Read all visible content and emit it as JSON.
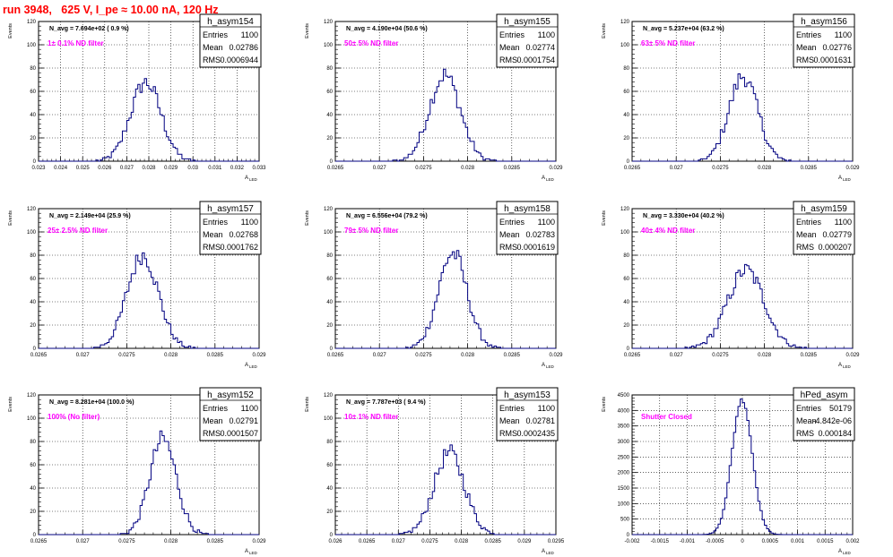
{
  "title": "run 3948,   625 V, I_pe ≈ 10.00 nA, 120 Hz",
  "common": {
    "ylabel": "Events",
    "xlabel": "A",
    "xlabel_sub": "LED",
    "line_color": "#000080",
    "annotation_color": "#ff00ff",
    "entries_label": "Entries",
    "mean_label": "Mean",
    "rms_label": "RMS"
  },
  "chart_data": [
    {
      "type": "bar",
      "name": "h_asym154",
      "navg": "N_avg = 7.694e+02 ( 0.9 %)",
      "filter": "1± 0.1% ND filter",
      "stats": {
        "entries": "1100",
        "mean": "0.02786",
        "rms": "0.0006944"
      },
      "xlim": [
        0.023,
        0.033
      ],
      "xticks": [
        "0.023",
        "0.024",
        "0.025",
        "0.026",
        "0.027",
        "0.028",
        "0.029",
        "0.03",
        "0.031",
        "0.032",
        "0.033"
      ],
      "ylim": [
        0,
        120
      ],
      "yticks": [
        "0",
        "20",
        "40",
        "60",
        "80",
        "100",
        "120"
      ],
      "mean": 0.02786,
      "sigma": 0.00069,
      "peak": 68,
      "entries": 1100
    },
    {
      "type": "bar",
      "name": "h_asym155",
      "navg": "N_avg = 4.190e+04 (50.6 %)",
      "filter": "50± 5% ND filter",
      "stats": {
        "entries": "1100",
        "mean": "0.02774",
        "rms": "0.0001754"
      },
      "xlim": [
        0.0265,
        0.029
      ],
      "xticks": [
        "0.0265",
        "0.027",
        "0.0275",
        "0.028",
        "0.0285",
        "0.029"
      ],
      "ylim": [
        0,
        120
      ],
      "yticks": [
        "0",
        "20",
        "40",
        "60",
        "80",
        "100",
        "120"
      ],
      "mean": 0.02774,
      "sigma": 0.000175,
      "peak": 74,
      "entries": 1100
    },
    {
      "type": "bar",
      "name": "h_asym156",
      "navg": "N_avg = 5.237e+04 (63.2 %)",
      "filter": "63± 5% ND filter",
      "stats": {
        "entries": "1100",
        "mean": "0.02776",
        "rms": "0.0001631"
      },
      "xlim": [
        0.0265,
        0.029
      ],
      "xticks": [
        "0.0265",
        "0.027",
        "0.0275",
        "0.028",
        "0.0285",
        "0.029"
      ],
      "ylim": [
        0,
        120
      ],
      "yticks": [
        "0",
        "20",
        "40",
        "60",
        "80",
        "100",
        "120"
      ],
      "mean": 0.02776,
      "sigma": 0.000163,
      "peak": 73,
      "entries": 1100
    },
    {
      "type": "bar",
      "name": "h_asym157",
      "navg": "N_avg = 2.149e+04 (25.9 %)",
      "filter": "25± 2.5% ND filter",
      "stats": {
        "entries": "1100",
        "mean": "0.02768",
        "rms": "0.0001762"
      },
      "xlim": [
        0.0265,
        0.029
      ],
      "xticks": [
        "0.0265",
        "0.027",
        "0.0275",
        "0.028",
        "0.0285",
        "0.029"
      ],
      "ylim": [
        0,
        120
      ],
      "yticks": [
        "0",
        "20",
        "40",
        "60",
        "80",
        "100",
        "120"
      ],
      "mean": 0.02768,
      "sigma": 0.000176,
      "peak": 80,
      "entries": 1100
    },
    {
      "type": "bar",
      "name": "h_asym158",
      "navg": "N_avg = 6.556e+04 (79.2 %)",
      "filter": "79± 5% ND filter",
      "stats": {
        "entries": "1100",
        "mean": "0.02783",
        "rms": "0.0001619"
      },
      "xlim": [
        0.0265,
        0.029
      ],
      "xticks": [
        "0.0265",
        "0.027",
        "0.0275",
        "0.028",
        "0.0285",
        "0.029"
      ],
      "ylim": [
        0,
        120
      ],
      "yticks": [
        "0",
        "20",
        "40",
        "60",
        "80",
        "100",
        "120"
      ],
      "mean": 0.02783,
      "sigma": 0.000162,
      "peak": 82,
      "entries": 1100
    },
    {
      "type": "bar",
      "name": "h_asym159",
      "navg": "N_avg = 3.330e+04 (40.2 %)",
      "filter": "40± 4% ND filter",
      "stats": {
        "entries": "1100",
        "mean": "0.02779",
        "rms": "0.000207"
      },
      "xlim": [
        0.0265,
        0.029
      ],
      "xticks": [
        "0.0265",
        "0.027",
        "0.0275",
        "0.028",
        "0.0285",
        "0.029"
      ],
      "ylim": [
        0,
        120
      ],
      "yticks": [
        "0",
        "20",
        "40",
        "60",
        "80",
        "100",
        "120"
      ],
      "mean": 0.02779,
      "sigma": 0.000207,
      "peak": 67,
      "entries": 1100
    },
    {
      "type": "bar",
      "name": "h_asym152",
      "navg": "N_avg = 8.281e+04 (100.0 %)",
      "filter": "100% (No filter)",
      "stats": {
        "entries": "1100",
        "mean": "0.02791",
        "rms": "0.0001507"
      },
      "xlim": [
        0.0265,
        0.029
      ],
      "xticks": [
        "0.0265",
        "0.027",
        "0.0275",
        "0.028",
        "0.0285",
        "0.029"
      ],
      "ylim": [
        0,
        120
      ],
      "yticks": [
        "0",
        "20",
        "40",
        "60",
        "80",
        "100",
        "120"
      ],
      "mean": 0.02791,
      "sigma": 0.000151,
      "peak": 82,
      "entries": 1100
    },
    {
      "type": "bar",
      "name": "h_asym153",
      "navg": "N_avg = 7.787e+03 ( 9.4 %)",
      "filter": "10± 1% ND filter",
      "stats": {
        "entries": "1100",
        "mean": "0.02781",
        "rms": "0.0002435"
      },
      "xlim": [
        0.026,
        0.0295
      ],
      "xticks": [
        "0.026",
        "0.0265",
        "0.027",
        "0.0275",
        "0.028",
        "0.0285",
        "0.029",
        "0.0295"
      ],
      "ylim": [
        0,
        120
      ],
      "yticks": [
        "0",
        "20",
        "40",
        "60",
        "80",
        "100",
        "120"
      ],
      "mean": 0.02781,
      "sigma": 0.000243,
      "peak": 70,
      "entries": 1100
    },
    {
      "type": "bar",
      "name": "hPed_asym",
      "navg": "",
      "filter": "Shutter Closed",
      "stats": {
        "entries": "50179",
        "mean": "-4.842e-06",
        "rms": "0.000184"
      },
      "xlim": [
        -0.002,
        0.002
      ],
      "xticks": [
        "-0.002",
        "-0.0015",
        "-0.001",
        "-0.0005",
        "0",
        "0.0005",
        "0.001",
        "0.0015",
        "0.002"
      ],
      "ylim": [
        0,
        4500
      ],
      "yticks": [
        "0",
        "500",
        "1000",
        "1500",
        "2000",
        "2500",
        "3000",
        "3500",
        "4000",
        "4500"
      ],
      "mean": -4.842e-06,
      "sigma": 0.000184,
      "peak": 4350,
      "entries": 50179
    }
  ]
}
